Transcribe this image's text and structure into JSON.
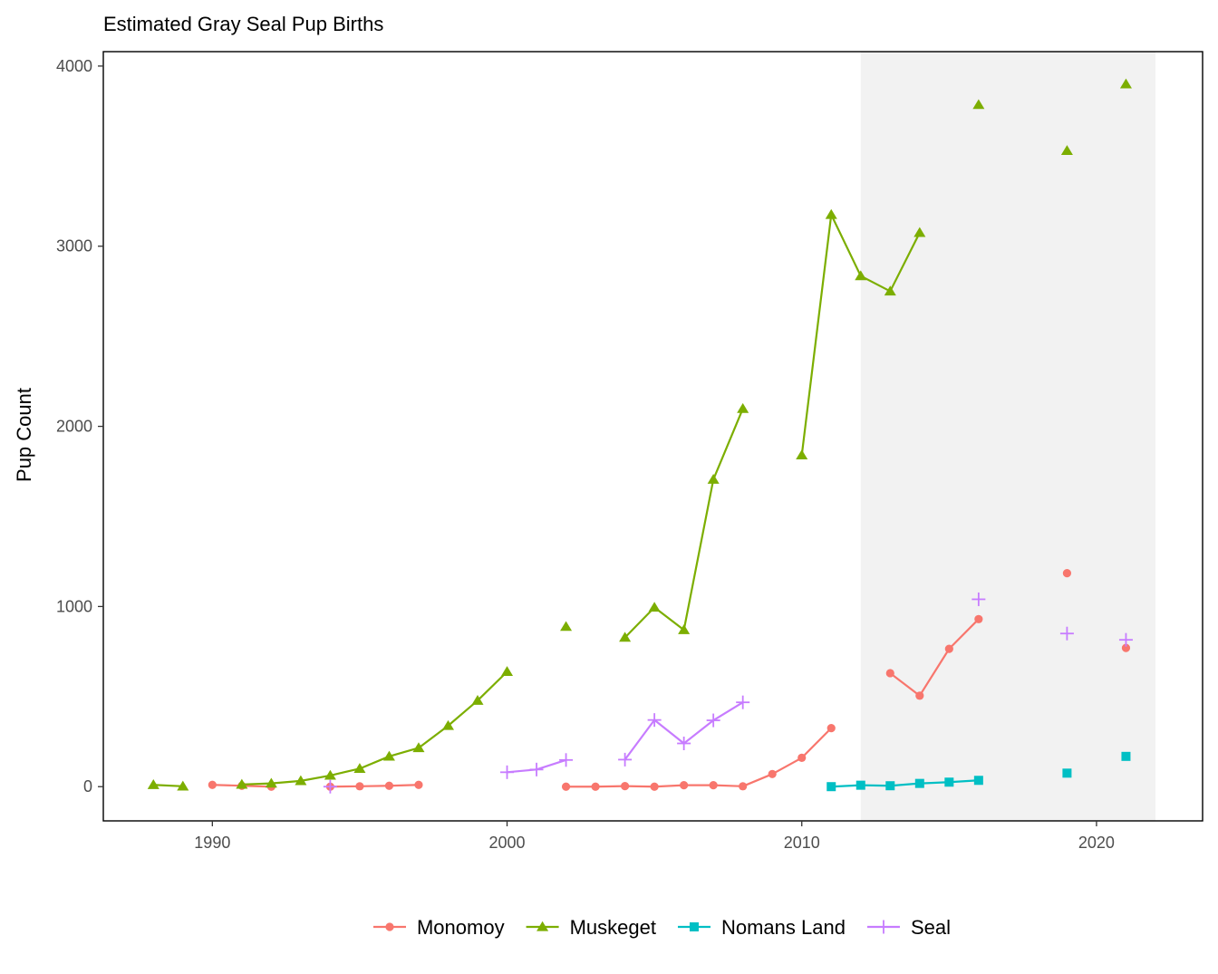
{
  "chart_data": {
    "type": "line",
    "title": "Estimated Gray Seal Pup Births",
    "xlabel": "",
    "ylabel": "Pup Count",
    "xlim": [
      1986.3,
      2023.6
    ],
    "ylim": [
      -190,
      4080
    ],
    "x_ticks": [
      1990,
      2000,
      2010,
      2020
    ],
    "y_ticks": [
      0,
      1000,
      2000,
      3000,
      4000
    ],
    "x_tick_labels": [
      "1990",
      "2000",
      "2010",
      "2020"
    ],
    "y_tick_labels": [
      "0",
      "1000",
      "2000",
      "3000",
      "4000"
    ],
    "grid": false,
    "legend_position": "bottom",
    "shaded_region": {
      "x_start": 2012,
      "x_end": 2022,
      "color": "#f2f2f2"
    },
    "series": [
      {
        "name": "Monomoy",
        "color": "#F8766D",
        "marker": "circle",
        "points": [
          [
            1990,
            10
          ],
          [
            1991,
            5
          ],
          [
            1992,
            0
          ],
          [
            1994,
            0
          ],
          [
            1995,
            2
          ],
          [
            1996,
            5
          ],
          [
            1997,
            10
          ],
          [
            2002,
            0
          ],
          [
            2003,
            0
          ],
          [
            2004,
            3
          ],
          [
            2005,
            0
          ],
          [
            2006,
            8
          ],
          [
            2007,
            8
          ],
          [
            2008,
            2
          ],
          [
            2009,
            70
          ],
          [
            2010,
            160
          ],
          [
            2011,
            325
          ],
          [
            2013,
            630
          ],
          [
            2014,
            505
          ],
          [
            2015,
            765
          ],
          [
            2016,
            930
          ],
          [
            2019,
            1185
          ],
          [
            2021,
            770
          ]
        ]
      },
      {
        "name": "Muskeget",
        "color": "#7CAE00",
        "marker": "triangle",
        "points": [
          [
            1988,
            10
          ],
          [
            1989,
            2
          ],
          [
            1991,
            12
          ],
          [
            1992,
            18
          ],
          [
            1993,
            32
          ],
          [
            1994,
            62
          ],
          [
            1995,
            100
          ],
          [
            1996,
            168
          ],
          [
            1997,
            215
          ],
          [
            1998,
            338
          ],
          [
            1999,
            478
          ],
          [
            2000,
            638
          ],
          [
            2002,
            888
          ],
          [
            2004,
            828
          ],
          [
            2005,
            995
          ],
          [
            2006,
            870
          ],
          [
            2007,
            1705
          ],
          [
            2008,
            2098
          ],
          [
            2010,
            1840
          ],
          [
            2011,
            3175
          ],
          [
            2012,
            2835
          ],
          [
            2013,
            2750
          ],
          [
            2014,
            3075
          ],
          [
            2016,
            3785
          ],
          [
            2019,
            3530
          ],
          [
            2021,
            3900
          ]
        ]
      },
      {
        "name": "Nomans Land",
        "color": "#00BFC4",
        "marker": "square",
        "points": [
          [
            2011,
            0
          ],
          [
            2012,
            8
          ],
          [
            2013,
            5
          ],
          [
            2014,
            18
          ],
          [
            2015,
            25
          ],
          [
            2016,
            35
          ],
          [
            2019,
            75
          ],
          [
            2021,
            168
          ]
        ]
      },
      {
        "name": "Seal",
        "color": "#C77CFF",
        "marker": "plus",
        "points": [
          [
            1994,
            0
          ],
          [
            2000,
            80
          ],
          [
            2001,
            95
          ],
          [
            2002,
            148
          ],
          [
            2004,
            150
          ],
          [
            2005,
            370
          ],
          [
            2006,
            240
          ],
          [
            2007,
            368
          ],
          [
            2008,
            468
          ],
          [
            2016,
            1040
          ],
          [
            2019,
            850
          ],
          [
            2021,
            815
          ]
        ]
      }
    ]
  }
}
